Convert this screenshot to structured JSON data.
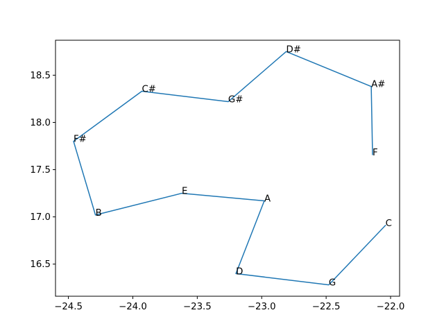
{
  "chart_data": {
    "type": "line",
    "title": "",
    "xlabel": "",
    "ylabel": "",
    "xlim": [
      -24.6,
      -21.93
    ],
    "ylim": [
      16.16,
      18.87
    ],
    "xticks": [
      -24.5,
      -24.0,
      -23.5,
      -23.0,
      -22.5,
      -22.0
    ],
    "xtick_labels": [
      "−24.5",
      "−24.0",
      "−23.5",
      "−23.0",
      "−22.5",
      "−22.0"
    ],
    "yticks": [
      16.5,
      17.0,
      17.5,
      18.0,
      18.5
    ],
    "ytick_labels": [
      "16.5",
      "17.0",
      "17.5",
      "18.0",
      "18.5"
    ],
    "grid": false,
    "line_color": "#1f77b4",
    "points": [
      {
        "label": "C",
        "x": -22.04,
        "y": 16.91
      },
      {
        "label": "G",
        "x": -22.48,
        "y": 16.28
      },
      {
        "label": "D",
        "x": -23.2,
        "y": 16.4
      },
      {
        "label": "A",
        "x": -22.98,
        "y": 17.17
      },
      {
        "label": "E",
        "x": -23.62,
        "y": 17.25
      },
      {
        "label": "B",
        "x": -24.29,
        "y": 17.02
      },
      {
        "label": "F#",
        "x": -24.46,
        "y": 17.8
      },
      {
        "label": "C#",
        "x": -23.93,
        "y": 18.33
      },
      {
        "label": "G#",
        "x": -23.26,
        "y": 18.22
      },
      {
        "label": "D#",
        "x": -22.81,
        "y": 18.75
      },
      {
        "label": "A#",
        "x": -22.15,
        "y": 18.38
      },
      {
        "label": "F",
        "x": -22.14,
        "y": 17.66
      }
    ]
  }
}
